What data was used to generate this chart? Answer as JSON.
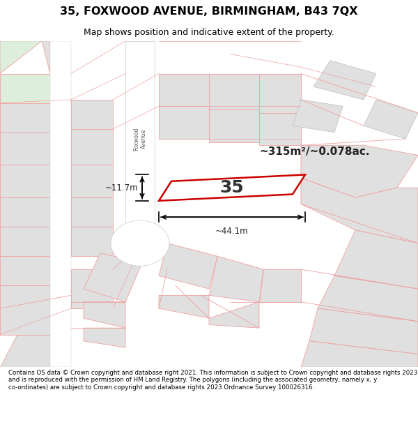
{
  "title": "35, FOXWOOD AVENUE, BIRMINGHAM, B43 7QX",
  "subtitle": "Map shows position and indicative extent of the property.",
  "area_text": "~315m²/~0.078ac.",
  "number_label": "35",
  "dim_width": "~44.1m",
  "dim_height": "~11.7m",
  "footer": "Contains OS data © Crown copyright and database right 2021. This information is subject to Crown copyright and database rights 2023 and is reproduced with the permission of HM Land Registry. The polygons (including the associated geometry, namely x, y co-ordinates) are subject to Crown copyright and database rights 2023 Ordnance Survey 100026316.",
  "bg_color": "#ffffff",
  "lc": "#f0a0a0",
  "gray_fill": "#e0e0e0",
  "white_fill": "#ffffff",
  "green_fill": "#ddeedd",
  "road_color": "#ffffff",
  "property_edge": "#cc0000",
  "dim_color": "#000000",
  "road_label_color": "#555555"
}
